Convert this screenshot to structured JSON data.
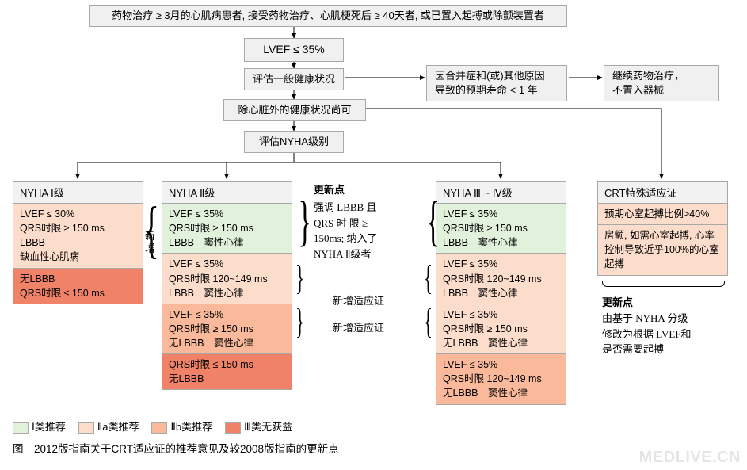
{
  "colors": {
    "class1": "#e1f1dc",
    "class2a": "#fcddcc",
    "class2b": "#f9b99a",
    "class3": "#f08367",
    "nodeBg": "#f0f0f0",
    "border": "#a8a8a8",
    "arrow": "#000000"
  },
  "flow": {
    "n1": "药物治疗 ≥ 3月的心肌病患者, 接受药物治疗、心肌梗死后 ≥ 40天者, 或已置入起搏或除颤装置者",
    "n2": "LVEF ≤ 35%",
    "n3": "评估一般健康状况",
    "n4": "因合并症和(或)其他原因\n导致的预期寿命 < 1 年",
    "n5": "继续药物治疗，\n不置入器械",
    "n6": "除心脏外的健康状况尚可",
    "n7": "评估NYHA级别"
  },
  "columns": {
    "c1": {
      "title": "NYHA Ⅰ级",
      "cells": [
        {
          "text": "LVEF ≤ 30%\nQRS时限 ≥ 150 ms\nLBBB\n缺血性心肌病",
          "cls": "class2a"
        },
        {
          "text": "无LBBB\nQRS时限 ≤ 150 ms",
          "cls": "class3"
        }
      ]
    },
    "c2": {
      "title": "NYHA Ⅱ级",
      "cells": [
        {
          "text": "LVEF ≤ 35%\nQRS时限 ≥ 150 ms\nLBBB　窦性心律",
          "cls": "class1"
        },
        {
          "text": "LVEF ≤ 35%\nQRS时限 120~149 ms\nLBBB　窦性心律",
          "cls": "class2a"
        },
        {
          "text": "LVEF ≤ 35%\nQRS时限 ≥ 150 ms\n无LBBB　窦性心律",
          "cls": "class2b"
        },
        {
          "text": "QRS时限 ≤ 150 ms\n无LBBB",
          "cls": "class3"
        }
      ]
    },
    "c3": {
      "title": "NYHA Ⅲ ~ Ⅳ级",
      "cells": [
        {
          "text": "LVEF ≤ 35%\nQRS时限 ≥ 150 ms\nLBBB　窦性心律",
          "cls": "class1"
        },
        {
          "text": "LVEF ≤ 35%\nQRS时限 120~149 ms\nLBBB　窦性心律",
          "cls": "class2a"
        },
        {
          "text": "LVEF ≤ 35%\nQRS时限 ≥ 150 ms\n无LBBB　窦性心律",
          "cls": "class2a"
        },
        {
          "text": "LVEF ≤ 35%\nQRS时限 120~149 ms\n无LBBB　窦性心律",
          "cls": "class2b"
        }
      ]
    },
    "c4": {
      "title": "CRT特殊适应证",
      "cells": [
        {
          "text": "预期心室起搏比例>40%",
          "cls": "class2a"
        },
        {
          "text": "房颤, 如需心室起搏, 心率控制导致近乎100%的心室起搏",
          "cls": "class2a"
        }
      ]
    }
  },
  "annotations": {
    "xinzeng": "新\n增",
    "update1_title": "更新点",
    "update1_body": "强调 LBBB 且\nQRS 时 限 ≥\n150ms; 纳入了\nNYHA Ⅱ级者",
    "new_indic": "新增适应证",
    "update2_title": "更新点",
    "update2_body": "由基于 NYHA 分级\n修改为根据 LVEF和\n是否需要起搏"
  },
  "legend": {
    "l1": "Ⅰ类推荐",
    "l2": "Ⅱa类推荐",
    "l3": "Ⅱb类推荐",
    "l4": "Ⅲ类无获益"
  },
  "caption": "图　2012版指南关于CRT适应证的推荐意见及较2008版指南的更新点",
  "watermark": "MEDLIVE.CN"
}
